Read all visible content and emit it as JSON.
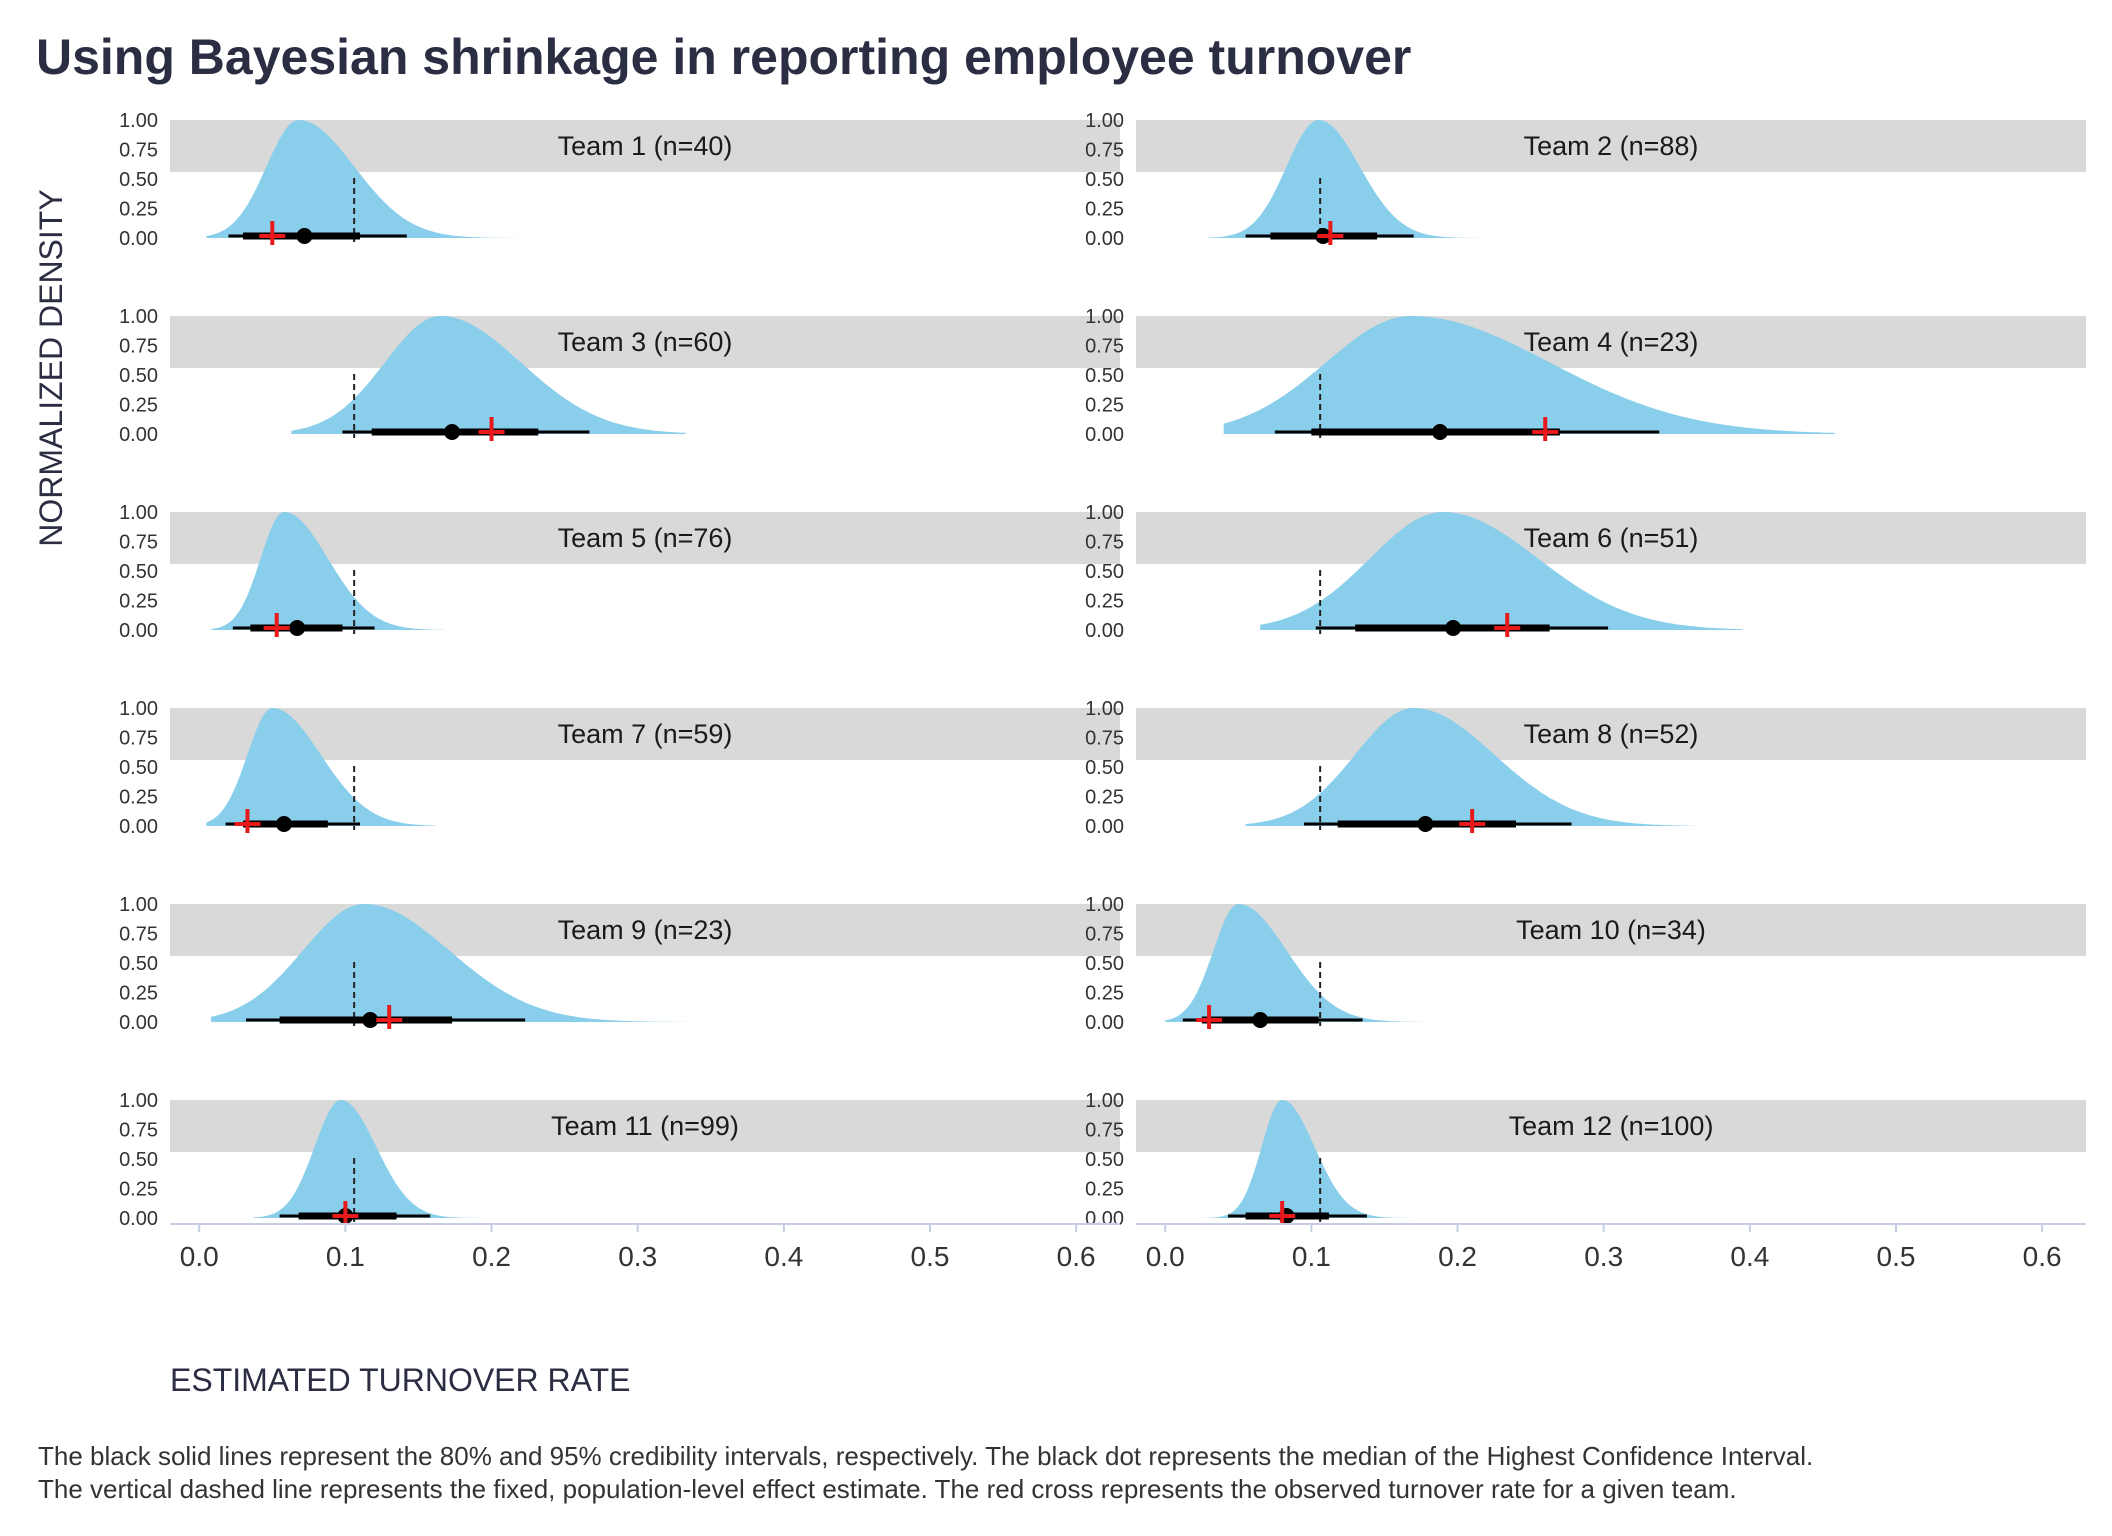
{
  "chart_data": {
    "type": "area",
    "title": "Using Bayesian shrinkage in reporting employee turnover",
    "xlabel": "ESTIMATED TURNOVER RATE",
    "ylabel": "NORMALIZED DENSITY",
    "xlim": [
      -0.02,
      0.63
    ],
    "ylim": [
      0,
      1.0
    ],
    "x_ticks": [
      "0.0",
      "0.1",
      "0.2",
      "0.3",
      "0.4",
      "0.5",
      "0.6"
    ],
    "y_ticks": [
      "0.00",
      "0.25",
      "0.50",
      "0.75",
      "1.00"
    ],
    "population_estimate": 0.106,
    "grid": false,
    "colors": {
      "density": "#89ceea",
      "interval": "#000000",
      "observed": "#e8191a",
      "strip": "#d9d9d9",
      "axis": "#c5cde0"
    },
    "panels": [
      {
        "label": "Team 1 (n=40)",
        "mode": 0.068,
        "sd_left": 0.022,
        "sd_right": 0.038,
        "min": 0.005,
        "max": 0.252,
        "median": 0.072,
        "ci80": [
          0.03,
          0.11
        ],
        "ci95": [
          0.02,
          0.142
        ],
        "observed": 0.05
      },
      {
        "label": "Team 2 (n=88)",
        "mode": 0.105,
        "sd_left": 0.022,
        "sd_right": 0.028,
        "min": 0.028,
        "max": 0.245,
        "median": 0.108,
        "ci80": [
          0.072,
          0.145
        ],
        "ci95": [
          0.055,
          0.17
        ],
        "observed": 0.113
      },
      {
        "label": "Team 3 (n=60)",
        "mode": 0.165,
        "sd_left": 0.038,
        "sd_right": 0.055,
        "min": 0.063,
        "max": 0.333,
        "median": 0.173,
        "ci80": [
          0.118,
          0.232
        ],
        "ci95": [
          0.098,
          0.267
        ],
        "observed": 0.2
      },
      {
        "label": "Team 4 (n=23)",
        "mode": 0.168,
        "sd_left": 0.058,
        "sd_right": 0.095,
        "min": 0.04,
        "max": 0.458,
        "median": 0.188,
        "ci80": [
          0.1,
          0.27
        ],
        "ci95": [
          0.075,
          0.338
        ],
        "observed": 0.26
      },
      {
        "label": "Team 5 (n=76)",
        "mode": 0.058,
        "sd_left": 0.016,
        "sd_right": 0.03,
        "min": 0.008,
        "max": 0.168,
        "median": 0.067,
        "ci80": [
          0.035,
          0.098
        ],
        "ci95": [
          0.023,
          0.12
        ],
        "observed": 0.053
      },
      {
        "label": "Team 6 (n=51)",
        "mode": 0.19,
        "sd_left": 0.05,
        "sd_right": 0.065,
        "min": 0.065,
        "max": 0.395,
        "median": 0.197,
        "ci80": [
          0.13,
          0.263
        ],
        "ci95": [
          0.103,
          0.303
        ],
        "observed": 0.234
      },
      {
        "label": "Team 7 (n=59)",
        "mode": 0.05,
        "sd_left": 0.017,
        "sd_right": 0.033,
        "min": 0.005,
        "max": 0.162,
        "median": 0.058,
        "ci80": [
          0.03,
          0.088
        ],
        "ci95": [
          0.018,
          0.11
        ],
        "observed": 0.033
      },
      {
        "label": "Team 8 (n=52)",
        "mode": 0.17,
        "sd_left": 0.04,
        "sd_right": 0.055,
        "min": 0.055,
        "max": 0.362,
        "median": 0.178,
        "ci80": [
          0.118,
          0.24
        ],
        "ci95": [
          0.095,
          0.278
        ],
        "observed": 0.21
      },
      {
        "label": "Team 9 (n=23)",
        "mode": 0.113,
        "sd_left": 0.042,
        "sd_right": 0.058,
        "min": 0.008,
        "max": 0.333,
        "median": 0.117,
        "ci80": [
          0.055,
          0.173
        ],
        "ci95": [
          0.032,
          0.223
        ],
        "observed": 0.13
      },
      {
        "label": "Team 10 (n=34)",
        "mode": 0.05,
        "sd_left": 0.017,
        "sd_right": 0.033,
        "min": 0.0,
        "max": 0.22,
        "median": 0.065,
        "ci80": [
          0.025,
          0.105
        ],
        "ci95": [
          0.012,
          0.135
        ],
        "observed": 0.03
      },
      {
        "label": "Team 11 (n=99)",
        "mode": 0.097,
        "sd_left": 0.018,
        "sd_right": 0.024,
        "min": 0.037,
        "max": 0.215,
        "median": 0.1,
        "ci80": [
          0.068,
          0.135
        ],
        "ci95": [
          0.055,
          0.158
        ],
        "observed": 0.1
      },
      {
        "label": "Team 12 (n=100)",
        "mode": 0.08,
        "sd_left": 0.014,
        "sd_right": 0.022,
        "min": 0.027,
        "max": 0.19,
        "median": 0.083,
        "ci80": [
          0.055,
          0.112
        ],
        "ci95": [
          0.043,
          0.138
        ],
        "observed": 0.08
      }
    ]
  },
  "caption": {
    "line1": "The black solid lines represent the 80% and 95% credibility intervals, respectively. The black dot represents the median of the Highest Confidence Interval.",
    "line2": "The vertical dashed line represents the fixed, population-level effect estimate. The red cross represents the observed turnover rate for a given team."
  }
}
